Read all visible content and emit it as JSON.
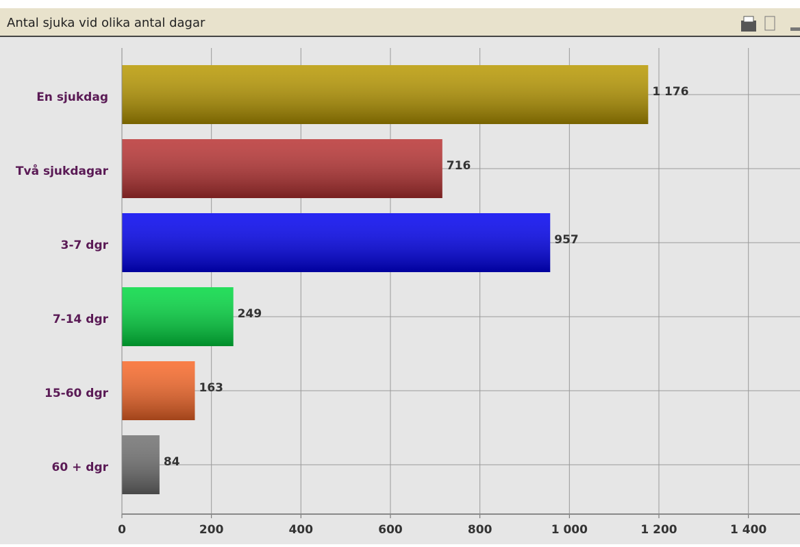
{
  "chart_data": {
    "type": "bar",
    "orientation": "horizontal",
    "title": "Antal sjuka vid olika antal dagar",
    "categories": [
      "En sjukdag",
      "Två sjukdagar",
      "3-7 dgr",
      "7-14 dgr",
      "15-60 dgr",
      "60 + dgr"
    ],
    "values": [
      1176,
      716,
      957,
      249,
      163,
      84
    ],
    "value_labels": [
      "1 176",
      "716",
      "957",
      "249",
      "163",
      "84"
    ],
    "colors": [
      "#b89800",
      "#b83232",
      "#0000f0",
      "#00d840",
      "#f86828",
      "#707070"
    ],
    "xlim": [
      0,
      1500
    ],
    "xticks": [
      0,
      200,
      400,
      600,
      800,
      {
        "value": 1000,
        "label": "1 000"
      },
      {
        "value": 1200,
        "label": "1 200"
      },
      {
        "value": 1400,
        "label": "1 400"
      }
    ],
    "grid": true
  }
}
